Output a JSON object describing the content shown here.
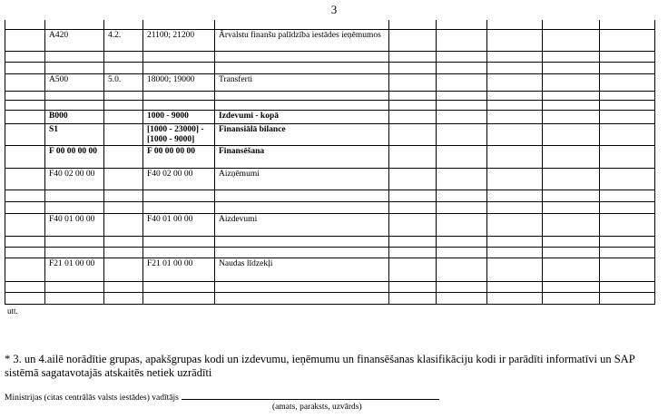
{
  "page_number": "3",
  "rows": [
    {
      "c1": "",
      "c2": "",
      "c3": "",
      "c4": "",
      "bold": false,
      "h": 10,
      "first": true
    },
    {
      "c1": "A420",
      "c2": "4.2.",
      "c3": "21100; 21200",
      "c4": "Ārvalstu finanšu palīdzība iestādes ieņēmumos",
      "bold": false,
      "h": 24
    },
    {
      "c1": "",
      "c2": "",
      "c3": "",
      "c4": "",
      "bold": false,
      "h": 12
    },
    {
      "c1": "",
      "c2": "",
      "c3": "",
      "c4": "",
      "bold": false,
      "h": 13
    },
    {
      "c1": "A500",
      "c2": "5.0.",
      "c3": "18000; 19000",
      "c4": "Transferti",
      "bold": false,
      "h": 19
    },
    {
      "c1": "",
      "c2": "",
      "c3": "",
      "c4": "",
      "bold": false,
      "h": 10
    },
    {
      "c1": "",
      "c2": "",
      "c3": "",
      "c4": "",
      "bold": false,
      "h": 11
    },
    {
      "c1": "B000",
      "c2": "",
      "c3": "1000 - 9000",
      "c4": "Izdevumi - kopā",
      "bold": true,
      "h": 15
    },
    {
      "c1": "S1",
      "c2": "",
      "c3": "[1000 - 23000] - [1000 - 9000]",
      "c4": "Finansiālā bilance",
      "bold": true,
      "h": 24
    },
    {
      "c1": "F 00 00 00 00",
      "c2": "",
      "c3": "F 00 00 00 00",
      "c4": "Finansēšana",
      "bold": true,
      "h": 25
    },
    {
      "c1": "F40 02 00 00",
      "c2": "",
      "c3": "F40 02 00 00",
      "c4": "Aizņēmumi",
      "bold": false,
      "h": 24
    },
    {
      "c1": "",
      "c2": "",
      "c3": "",
      "c4": "",
      "bold": false,
      "h": 13
    },
    {
      "c1": "",
      "c2": "",
      "c3": "",
      "c4": "",
      "bold": false,
      "h": 13
    },
    {
      "c1": "F40 01 00 00",
      "c2": "",
      "c3": "F40 01 00 00",
      "c4": "Aizdevumi",
      "bold": false,
      "h": 25
    },
    {
      "c1": "",
      "c2": "",
      "c3": "",
      "c4": "",
      "bold": false,
      "h": 12
    },
    {
      "c1": "",
      "c2": "",
      "c3": "",
      "c4": "",
      "bold": false,
      "h": 12
    },
    {
      "c1": "F21 01 00 00",
      "c2": "",
      "c3": "F21 01 00 00",
      "c4": "Naudas līdzekļi",
      "bold": false,
      "h": 26
    },
    {
      "c1": "",
      "c2": "",
      "c3": "",
      "c4": "",
      "bold": false,
      "h": 12
    },
    {
      "c1": "",
      "c2": "",
      "c3": "",
      "c4": "",
      "bold": false,
      "h": 13
    }
  ],
  "utt": "utt.",
  "footnote": "* 3. un 4.ailē norādītie grupas, apakšgrupas kodi un izdevumu, ieņēmumu un finansēšanas klasifikāciju kodi ir parādīti informatīvi un SAP sistēmā sagatavotajās atskaitēs netiek uzrādīti",
  "signature_label": "Ministrijas (citas centrālās valsts iestādes) vadītājs",
  "signature_sub": "(amats, paraksts, uzvārds)"
}
